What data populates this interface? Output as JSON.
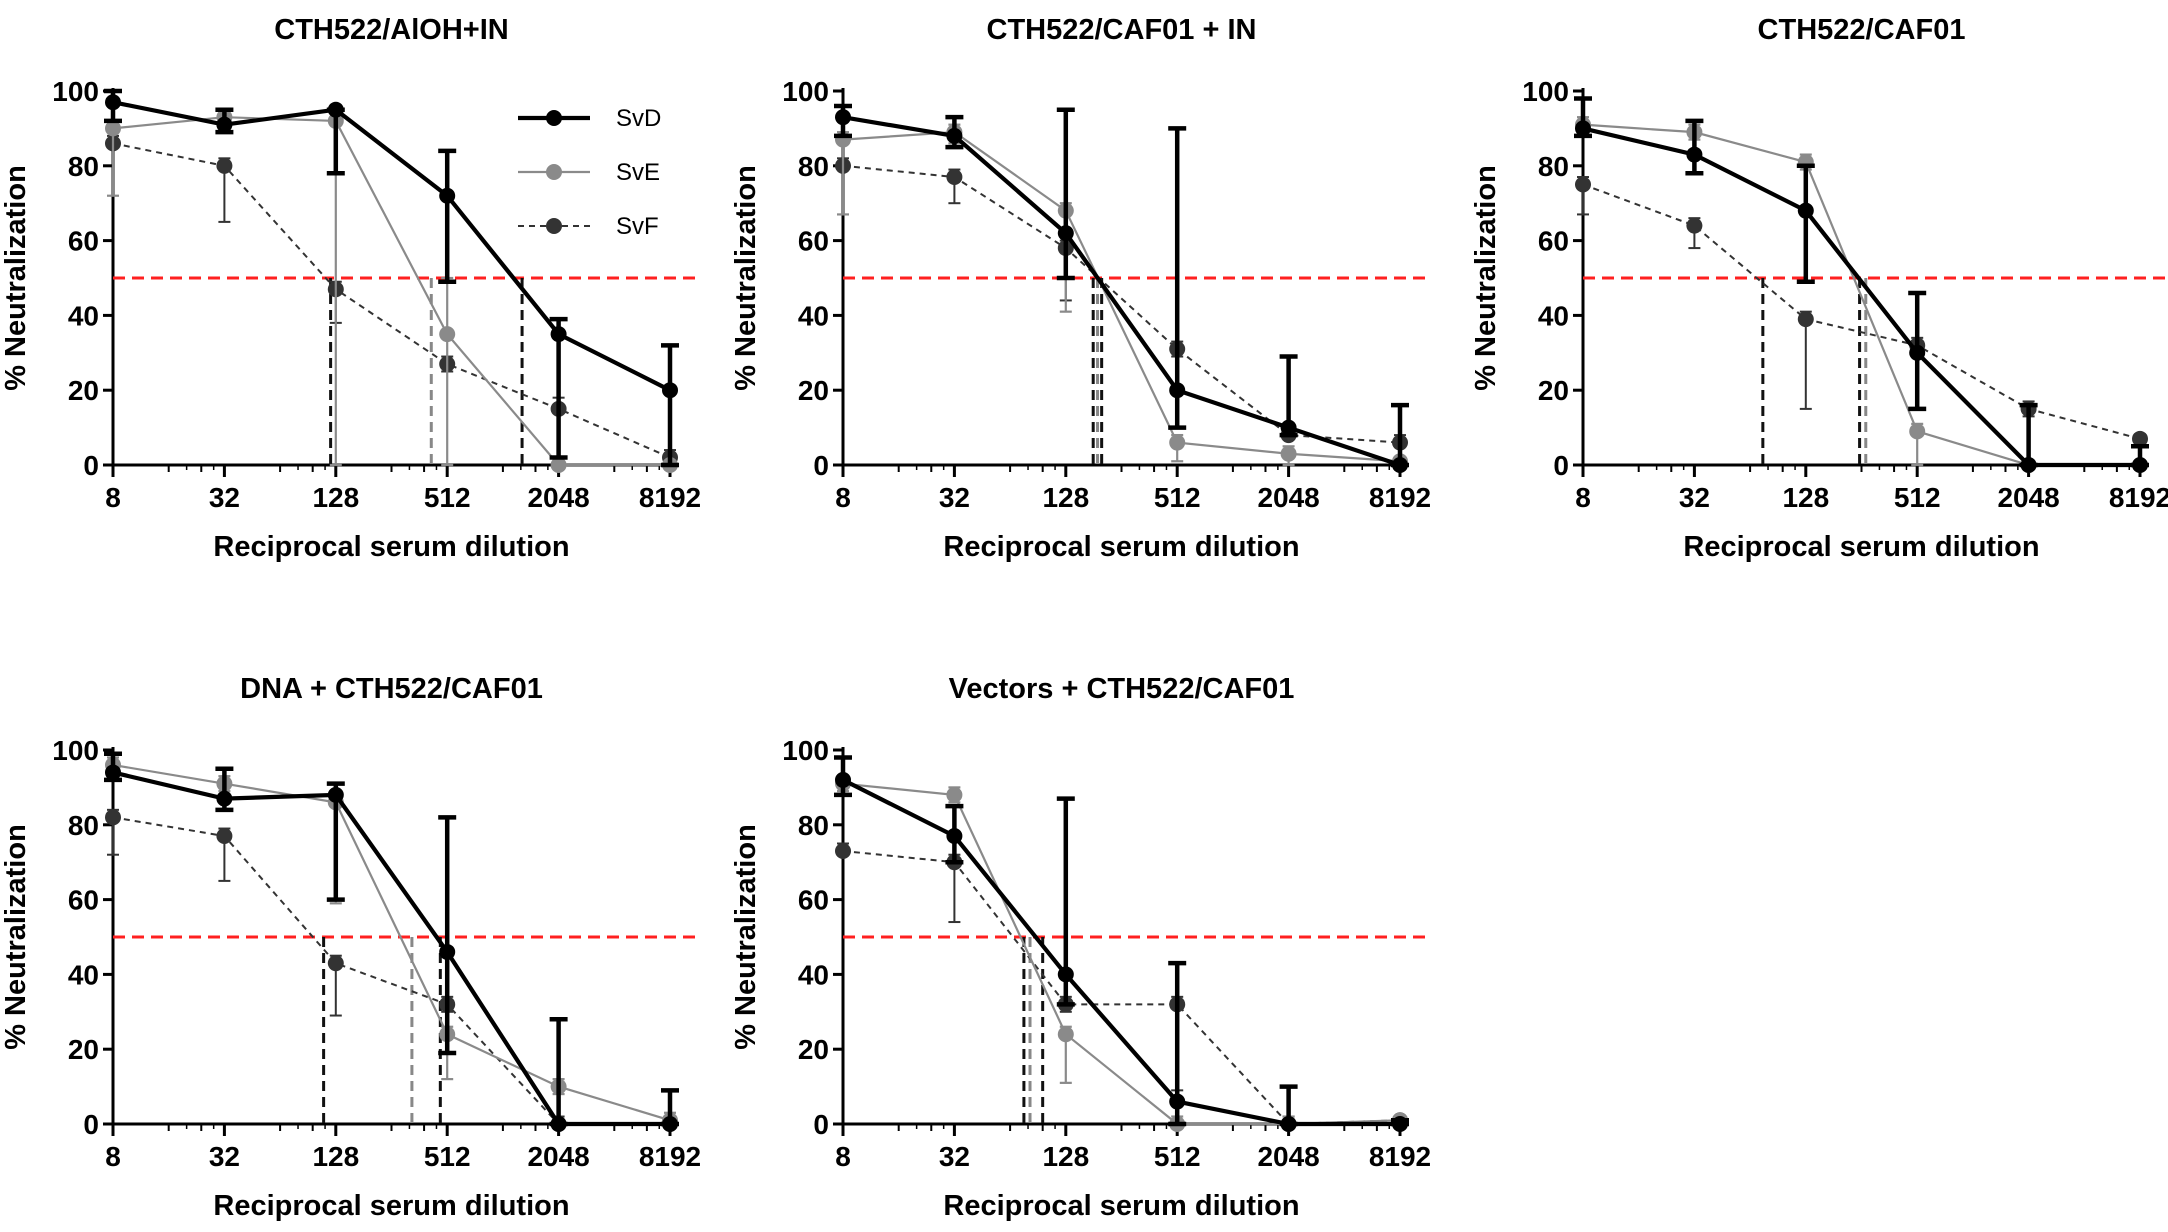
{
  "figure": {
    "legend": [
      {
        "name": "SvD",
        "color": "#000000",
        "style": "solid-thick"
      },
      {
        "name": "SvE",
        "color": "#8a8a8a",
        "style": "solid-thin"
      },
      {
        "name": "SvF",
        "color": "#333333",
        "style": "dashed"
      }
    ],
    "threshold_color": "#ff2020",
    "threshold_value": 50
  },
  "chart_data": [
    {
      "type": "line",
      "title": "CTH522/AlOH+IN",
      "xlabel": "Reciprocal serum dilution",
      "ylabel": "% Neutralization",
      "xscale": "log2",
      "x": [
        8,
        32,
        128,
        512,
        2048,
        8192
      ],
      "xticks": [
        "8",
        "32",
        "128",
        "512",
        "2048",
        "8192"
      ],
      "yticks": [
        "0",
        "20",
        "40",
        "60",
        "80",
        "100"
      ],
      "ylim": [
        0,
        100
      ],
      "threshold": 50,
      "show_legend": true,
      "series": [
        {
          "name": "SvD",
          "values": [
            97,
            91,
            95,
            72,
            35,
            20
          ],
          "err_low": [
            92,
            89,
            78,
            49,
            2,
            0
          ],
          "err_high": [
            100,
            95,
            95,
            84,
            39,
            32
          ],
          "ic50": 1300
        },
        {
          "name": "SvE",
          "values": [
            90,
            93,
            92,
            35,
            0,
            0
          ],
          "err_low": [
            72,
            91,
            0,
            0,
            0,
            0
          ],
          "err_high": [
            92,
            95,
            93,
            50,
            0,
            0
          ],
          "ic50": 420
        },
        {
          "name": "SvF",
          "values": [
            86,
            80,
            47,
            27,
            15,
            2
          ],
          "err_low": [
            86,
            65,
            38,
            25,
            2,
            0
          ],
          "err_high": [
            88,
            82,
            49,
            29,
            18,
            4
          ],
          "ic50": 120
        }
      ]
    },
    {
      "type": "line",
      "title": "CTH522/CAF01 + IN",
      "xlabel": "Reciprocal serum dilution",
      "ylabel": "",
      "xscale": "log2",
      "x": [
        8,
        32,
        128,
        512,
        2048,
        8192
      ],
      "xticks": [
        "8",
        "32",
        "128",
        "512",
        "2048",
        "8192"
      ],
      "yticks": [
        "0",
        "20",
        "40",
        "60",
        "80",
        "100"
      ],
      "ylim": [
        0,
        100
      ],
      "threshold": 50,
      "show_legend": false,
      "series": [
        {
          "name": "SvD",
          "values": [
            93,
            88,
            62,
            20,
            10,
            0
          ],
          "err_low": [
            88,
            85,
            50,
            10,
            8,
            0
          ],
          "err_high": [
            96,
            93,
            95,
            90,
            29,
            16
          ],
          "ic50": 200
        },
        {
          "name": "SvE",
          "values": [
            87,
            89,
            68,
            6,
            3,
            1
          ],
          "err_low": [
            67,
            86,
            41,
            1,
            0,
            0
          ],
          "err_high": [
            89,
            91,
            70,
            8,
            5,
            2
          ],
          "ic50": 190
        },
        {
          "name": "SvF",
          "values": [
            80,
            77,
            58,
            31,
            8,
            6
          ],
          "err_low": [
            80,
            70,
            44,
            29,
            7,
            5
          ],
          "err_high": [
            82,
            79,
            60,
            33,
            9,
            8
          ],
          "ic50": 180
        }
      ]
    },
    {
      "type": "line",
      "title": "CTH522/CAF01",
      "xlabel": "Reciprocal serum dilution",
      "ylabel": "",
      "xscale": "log2",
      "x": [
        8,
        32,
        128,
        512,
        2048,
        8192
      ],
      "xticks": [
        "8",
        "32",
        "128",
        "512",
        "2048",
        "8192"
      ],
      "yticks": [
        "0",
        "20",
        "40",
        "60",
        "80",
        "100"
      ],
      "ylim": [
        0,
        100
      ],
      "threshold": 50,
      "show_legend": false,
      "series": [
        {
          "name": "SvD",
          "values": [
            90,
            83,
            68,
            30,
            0,
            0
          ],
          "err_low": [
            88,
            78,
            49,
            15,
            0,
            0
          ],
          "err_high": [
            98,
            92,
            80,
            46,
            16,
            5
          ],
          "ic50": 250
        },
        {
          "name": "SvE",
          "values": [
            91,
            89,
            81,
            9,
            0,
            0
          ],
          "err_low": [
            89,
            87,
            79,
            0,
            0,
            0
          ],
          "err_high": [
            93,
            91,
            83,
            11,
            0,
            0
          ],
          "ic50": 270
        },
        {
          "name": "SvF",
          "values": [
            75,
            64,
            39,
            32,
            15,
            7
          ],
          "err_low": [
            67,
            58,
            15,
            30,
            13,
            6
          ],
          "err_high": [
            77,
            66,
            41,
            34,
            17,
            8
          ],
          "ic50": 75
        }
      ]
    },
    {
      "type": "line",
      "title": "DNA + CTH522/CAF01",
      "xlabel": "Reciprocal serum dilution",
      "ylabel": "% Neutralization",
      "xscale": "log2",
      "x": [
        8,
        32,
        128,
        512,
        2048,
        8192
      ],
      "xticks": [
        "8",
        "32",
        "128",
        "512",
        "2048",
        "8192"
      ],
      "yticks": [
        "0",
        "20",
        "40",
        "60",
        "80",
        "100"
      ],
      "ylim": [
        0,
        100
      ],
      "threshold": 50,
      "show_legend": false,
      "series": [
        {
          "name": "SvD",
          "values": [
            94,
            87,
            88,
            46,
            0,
            0
          ],
          "err_low": [
            92,
            84,
            60,
            19,
            0,
            0
          ],
          "err_high": [
            99,
            95,
            91,
            82,
            28,
            9
          ],
          "ic50": 470
        },
        {
          "name": "SvE",
          "values": [
            96,
            91,
            86,
            24,
            10,
            1
          ],
          "err_low": [
            94,
            89,
            59,
            12,
            8,
            0
          ],
          "err_high": [
            98,
            93,
            89,
            26,
            12,
            3
          ],
          "ic50": 330
        },
        {
          "name": "SvF",
          "values": [
            82,
            77,
            43,
            32,
            0,
            0
          ],
          "err_low": [
            72,
            65,
            29,
            30,
            0,
            0
          ],
          "err_high": [
            84,
            79,
            45,
            34,
            2,
            2
          ],
          "ic50": 110
        }
      ]
    },
    {
      "type": "line",
      "title": "Vectors + CTH522/CAF01",
      "xlabel": "Reciprocal serum dilution",
      "ylabel": "",
      "xscale": "log2",
      "x": [
        8,
        32,
        128,
        512,
        2048,
        8192
      ],
      "xticks": [
        "8",
        "32",
        "128",
        "512",
        "2048",
        "8192"
      ],
      "yticks": [
        "0",
        "20",
        "40",
        "60",
        "80",
        "100"
      ],
      "ylim": [
        0,
        100
      ],
      "threshold": 50,
      "show_legend": false,
      "series": [
        {
          "name": "SvD",
          "values": [
            92,
            77,
            40,
            6,
            0,
            0
          ],
          "err_low": [
            88,
            70,
            32,
            0,
            0,
            0
          ],
          "err_high": [
            98,
            85,
            87,
            43,
            10,
            1
          ],
          "ic50": 96
        },
        {
          "name": "SvE",
          "values": [
            91,
            88,
            24,
            0,
            0,
            1
          ],
          "err_low": [
            89,
            86,
            11,
            0,
            0,
            0
          ],
          "err_high": [
            93,
            90,
            26,
            2,
            2,
            2
          ],
          "ic50": 82
        },
        {
          "name": "SvF",
          "values": [
            73,
            70,
            32,
            32,
            0,
            1
          ],
          "err_low": [
            73,
            54,
            30,
            9,
            0,
            0
          ],
          "err_high": [
            75,
            72,
            34,
            34,
            2,
            2
          ],
          "ic50": 76
        }
      ]
    }
  ]
}
